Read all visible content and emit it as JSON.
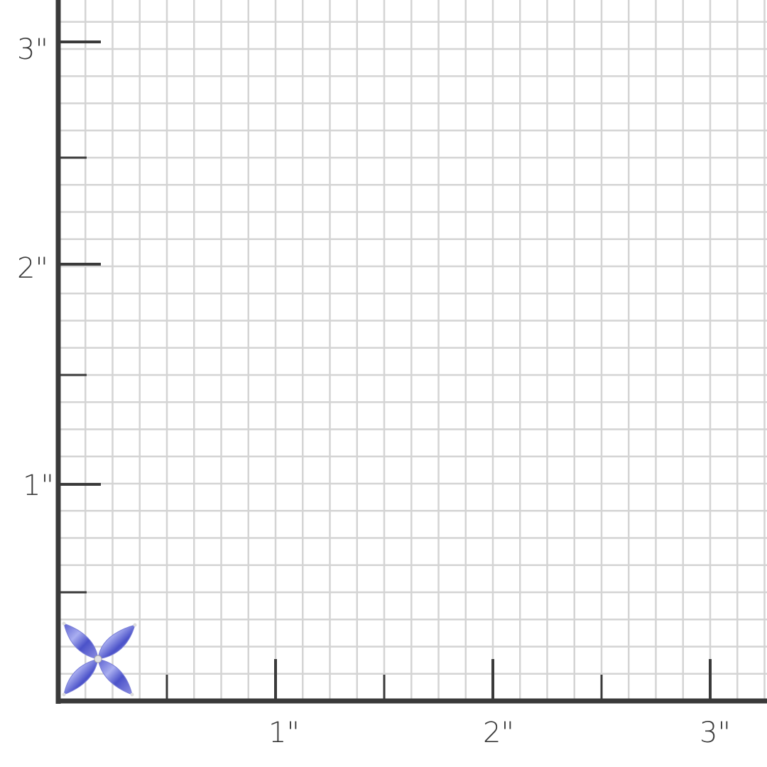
{
  "ruler": {
    "unit_mark": "\"",
    "y_labels": [
      "3\"",
      "2\"",
      "1\""
    ],
    "x_labels": [
      "1\"",
      "2\"",
      "3\""
    ],
    "axis_color": "#3a3a3a",
    "grid_color": "#d4d4d4"
  },
  "product": {
    "icon": "flower-earring-icon",
    "stone_color": "#6f72d8",
    "petals": 4
  }
}
